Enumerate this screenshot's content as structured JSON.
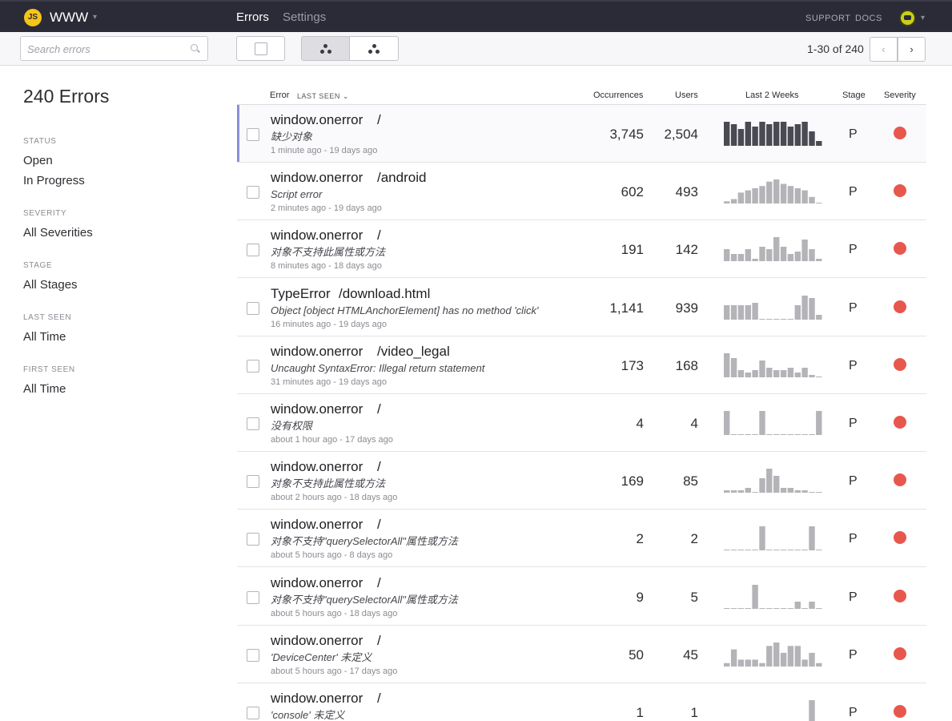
{
  "topbar": {
    "logo_text": "JS",
    "project_name": "WWW",
    "tabs": [
      {
        "label": "Errors",
        "active": true
      },
      {
        "label": "Settings",
        "active": false
      }
    ],
    "links": [
      "SUPPORT",
      "DOCS"
    ]
  },
  "toolbar": {
    "search_placeholder": "Search errors",
    "pager_text": "1-30 of 240",
    "prev_icon": "‹",
    "next_icon": "›"
  },
  "sidebar": {
    "title": "240 Errors",
    "filters": [
      {
        "heading": "STATUS",
        "options": [
          "Open",
          "In Progress"
        ]
      },
      {
        "heading": "SEVERITY",
        "options": [
          "All Severities"
        ]
      },
      {
        "heading": "STAGE",
        "options": [
          "All Stages"
        ]
      },
      {
        "heading": "LAST SEEN",
        "options": [
          "All Time"
        ]
      },
      {
        "heading": "FIRST SEEN",
        "options": [
          "All Time"
        ]
      }
    ]
  },
  "table": {
    "headers": {
      "error": "Error",
      "sort": "LAST SEEN ⌄",
      "occurrences": "Occurrences",
      "users": "Users",
      "trend": "Last 2 Weeks",
      "stage": "Stage",
      "severity": "Severity"
    },
    "severity_color": "#e8574d",
    "spark_color_dark": "#4a4a52",
    "spark_color_light": "#b4b4b8",
    "rows": [
      {
        "type": "window.onerror",
        "path": "/",
        "message": "缺少对象",
        "last_seen": "1 minute ago",
        "first_seen": "19 days ago",
        "occurrences": "3,745",
        "users": "2,504",
        "stage": "P",
        "highlight": true,
        "trend": [
          10,
          9,
          7,
          10,
          8,
          10,
          9,
          10,
          10,
          8,
          9,
          10,
          6,
          2
        ]
      },
      {
        "type": "window.onerror",
        "path": "/android",
        "message": "Script error",
        "last_seen": "2 minutes ago",
        "first_seen": "19 days ago",
        "occurrences": "602",
        "users": "493",
        "stage": "P",
        "highlight": false,
        "trend": [
          1,
          2,
          5,
          6,
          7,
          8,
          10,
          11,
          9,
          8,
          7,
          6,
          3,
          0
        ]
      },
      {
        "type": "window.onerror",
        "path": "/",
        "message": "对象不支持此属性或方法",
        "last_seen": "8 minutes ago",
        "first_seen": "18 days ago",
        "occurrences": "191",
        "users": "142",
        "stage": "P",
        "highlight": false,
        "trend": [
          5,
          3,
          3,
          5,
          1,
          6,
          5,
          10,
          6,
          3,
          4,
          9,
          5,
          1
        ]
      },
      {
        "type": "TypeError",
        "path": "/download.html",
        "message": "Object [object HTMLAnchorElement] has no method 'click'",
        "last_seen": "16 minutes ago",
        "first_seen": "19 days ago",
        "occurrences": "1,141",
        "users": "939",
        "stage": "P",
        "highlight": false,
        "trend": [
          6,
          6,
          6,
          6,
          7,
          0,
          0,
          0,
          0,
          0,
          6,
          10,
          9,
          2
        ]
      },
      {
        "type": "window.onerror",
        "path": "/video_legal",
        "message": "Uncaught SyntaxError: Illegal return statement",
        "last_seen": "31 minutes ago",
        "first_seen": "19 days ago",
        "occurrences": "173",
        "users": "168",
        "stage": "P",
        "highlight": false,
        "trend": [
          10,
          8,
          3,
          2,
          3,
          7,
          4,
          3,
          3,
          4,
          2,
          4,
          1,
          0
        ]
      },
      {
        "type": "window.onerror",
        "path": "/",
        "message": "没有权限",
        "last_seen": "about 1 hour ago",
        "first_seen": "17 days ago",
        "occurrences": "4",
        "users": "4",
        "stage": "P",
        "highlight": false,
        "trend": [
          10,
          0,
          0,
          0,
          0,
          10,
          0,
          0,
          0,
          0,
          0,
          0,
          0,
          10
        ]
      },
      {
        "type": "window.onerror",
        "path": "/",
        "message": "对象不支持此属性或方法",
        "last_seen": "about 2 hours ago",
        "first_seen": "18 days ago",
        "occurrences": "169",
        "users": "85",
        "stage": "P",
        "highlight": false,
        "trend": [
          1,
          1,
          1,
          2,
          0,
          6,
          10,
          7,
          2,
          2,
          1,
          1,
          0,
          0
        ]
      },
      {
        "type": "window.onerror",
        "path": "/",
        "message": "对象不支持\"querySelectorAll\"属性或方法",
        "last_seen": "about 5 hours ago",
        "first_seen": "8 days ago",
        "occurrences": "2",
        "users": "2",
        "stage": "P",
        "highlight": false,
        "trend": [
          0,
          0,
          0,
          0,
          0,
          10,
          0,
          0,
          0,
          0,
          0,
          0,
          10,
          0
        ]
      },
      {
        "type": "window.onerror",
        "path": "/",
        "message": "对象不支持\"querySelectorAll\"属性或方法",
        "last_seen": "about 5 hours ago",
        "first_seen": "18 days ago",
        "occurrences": "9",
        "users": "5",
        "stage": "P",
        "highlight": false,
        "trend": [
          0,
          0,
          0,
          0,
          10,
          0,
          0,
          0,
          0,
          0,
          3,
          0,
          3,
          0
        ]
      },
      {
        "type": "window.onerror",
        "path": "/",
        "message": "'DeviceCenter' 未定义",
        "last_seen": "about 5 hours ago",
        "first_seen": "17 days ago",
        "occurrences": "50",
        "users": "45",
        "stage": "P",
        "highlight": false,
        "trend": [
          1,
          5,
          2,
          2,
          2,
          1,
          6,
          7,
          4,
          6,
          6,
          2,
          4,
          1
        ]
      },
      {
        "type": "window.onerror",
        "path": "/",
        "message": "'console' 未定义",
        "last_seen": "",
        "first_seen": "",
        "occurrences": "1",
        "users": "1",
        "stage": "P",
        "highlight": false,
        "trend": [
          0,
          0,
          0,
          0,
          0,
          0,
          0,
          0,
          0,
          0,
          0,
          0,
          10,
          0
        ]
      }
    ]
  }
}
